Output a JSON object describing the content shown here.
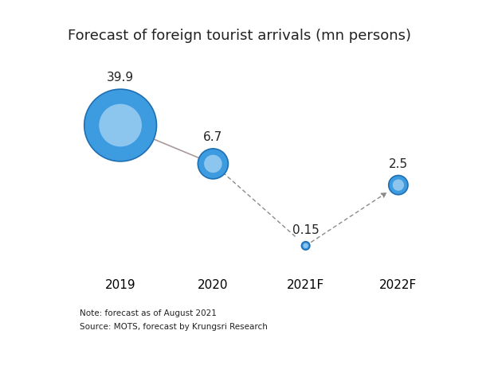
{
  "chart_data": {
    "type": "bubble",
    "title": "Forecast of foreign tourist arrivals (mn persons)",
    "categories": [
      "2019",
      "2020",
      "2021F",
      "2022F"
    ],
    "values": [
      39.9,
      6.7,
      0.15,
      2.5
    ],
    "color": "#3d9be0",
    "log": "y",
    "ylim": [
      0.1,
      1000
    ],
    "yticks": [
      0.1,
      1,
      10,
      100,
      1000
    ],
    "tick_labels": "x",
    "grid": false,
    "data_labels": true,
    "annotations": [
      "Note: forecast as of August 2021",
      "Source: MOTS, forecast by Krungsri Research"
    ]
  }
}
